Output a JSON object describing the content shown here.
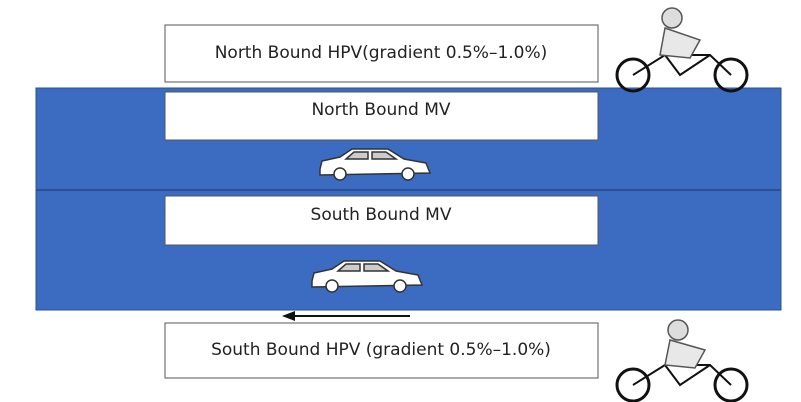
{
  "lanes": [
    {
      "label": "North Bound HPV(gradient 0.5%–1.0%)"
    },
    {
      "label": "North Bound MV"
    },
    {
      "label": "South Bound MV"
    },
    {
      "label": "South Bound HPV (gradient 0.5%–1.0%)"
    }
  ]
}
